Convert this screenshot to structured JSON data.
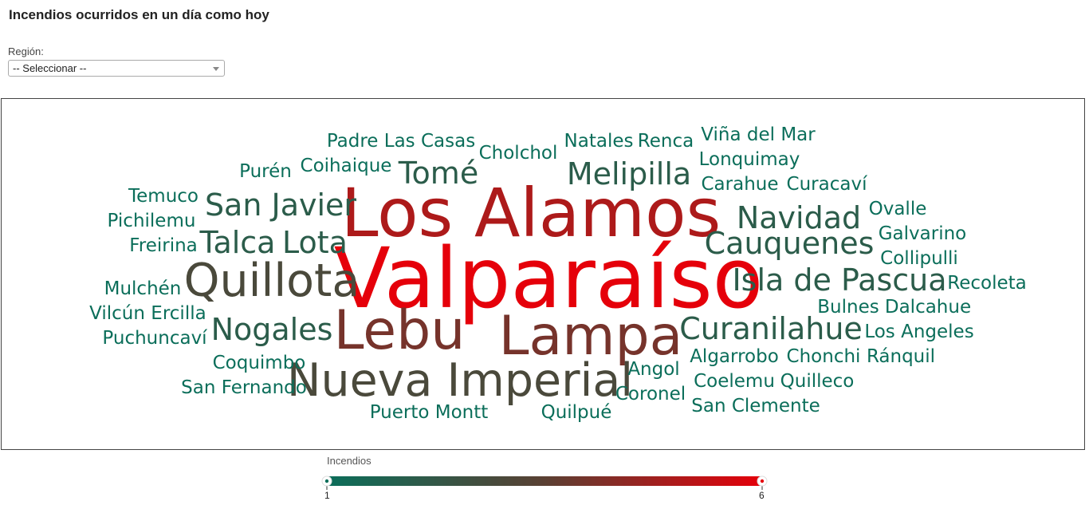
{
  "page": {
    "title": "Incendios ocurridos en un día como hoy"
  },
  "filter": {
    "label": "Región:",
    "selected": "-- Seleccionar --"
  },
  "legend": {
    "title": "Incendios",
    "min_label": "1",
    "max_label": "6",
    "color_low": "#0b6e5a",
    "color_mid": "#5a4033",
    "color_high": "#e5000a"
  },
  "chart_data": {
    "type": "wordcloud",
    "value_name": "Incendios",
    "value_range": [
      1,
      6
    ],
    "words": [
      {
        "text": "Valparaíso",
        "value": 6
      },
      {
        "text": "Los Alamos",
        "value": 5
      },
      {
        "text": "Lebu",
        "value": 4
      },
      {
        "text": "Lampa",
        "value": 4
      },
      {
        "text": "Nueva Imperial",
        "value": 3
      },
      {
        "text": "Quillota",
        "value": 3
      },
      {
        "text": "Tomé",
        "value": 2
      },
      {
        "text": "Melipilla",
        "value": 2
      },
      {
        "text": "San Javier",
        "value": 2
      },
      {
        "text": "Talca",
        "value": 2
      },
      {
        "text": "Lota",
        "value": 2
      },
      {
        "text": "Navidad",
        "value": 2
      },
      {
        "text": "Cauquenes",
        "value": 2
      },
      {
        "text": "Isla de Pascua",
        "value": 2
      },
      {
        "text": "Nogales",
        "value": 2
      },
      {
        "text": "Curanilahue",
        "value": 2
      },
      {
        "text": "Padre Las Casas",
        "value": 1
      },
      {
        "text": "Cholchol",
        "value": 1
      },
      {
        "text": "Natales",
        "value": 1
      },
      {
        "text": "Renca",
        "value": 1
      },
      {
        "text": "Viña del Mar",
        "value": 1
      },
      {
        "text": "Purén",
        "value": 1
      },
      {
        "text": "Coihaique",
        "value": 1
      },
      {
        "text": "Lonquimay",
        "value": 1
      },
      {
        "text": "Carahue",
        "value": 1
      },
      {
        "text": "Curacaví",
        "value": 1
      },
      {
        "text": "Temuco",
        "value": 1
      },
      {
        "text": "Pichilemu",
        "value": 1
      },
      {
        "text": "Freirina",
        "value": 1
      },
      {
        "text": "Ovalle",
        "value": 1
      },
      {
        "text": "Galvarino",
        "value": 1
      },
      {
        "text": "Collipulli",
        "value": 1
      },
      {
        "text": "Mulchén",
        "value": 1
      },
      {
        "text": "Recoleta",
        "value": 1
      },
      {
        "text": "Vilcún",
        "value": 1
      },
      {
        "text": "Ercilla",
        "value": 1
      },
      {
        "text": "Bulnes",
        "value": 1
      },
      {
        "text": "Dalcahue",
        "value": 1
      },
      {
        "text": "Puchuncaví",
        "value": 1
      },
      {
        "text": "Los Angeles",
        "value": 1
      },
      {
        "text": "Coquimbo",
        "value": 1
      },
      {
        "text": "Algarrobo",
        "value": 1
      },
      {
        "text": "Chonchi",
        "value": 1
      },
      {
        "text": "Ránquil",
        "value": 1
      },
      {
        "text": "San Fernando",
        "value": 1
      },
      {
        "text": "Angol",
        "value": 1
      },
      {
        "text": "Coelemu",
        "value": 1
      },
      {
        "text": "Quilleco",
        "value": 1
      },
      {
        "text": "Coronel",
        "value": 1
      },
      {
        "text": "Puerto Montt",
        "value": 1
      },
      {
        "text": "Quilpué",
        "value": 1
      },
      {
        "text": "San Clemente",
        "value": 1
      }
    ]
  }
}
